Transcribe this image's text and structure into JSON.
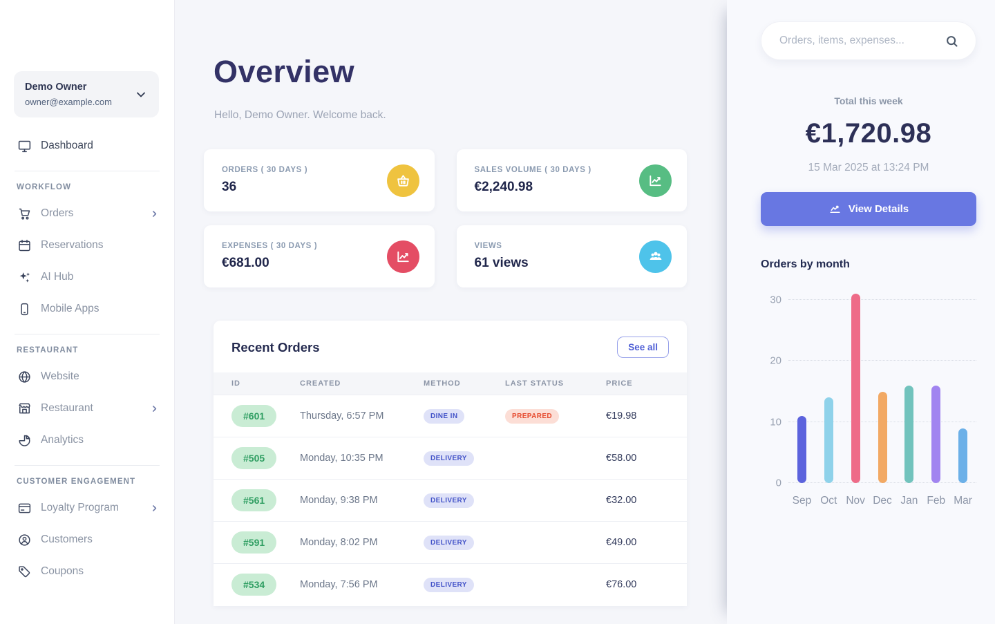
{
  "sidebar": {
    "user": {
      "name": "Demo Owner",
      "email": "owner@example.com"
    },
    "dashboard_label": "Dashboard",
    "sections": [
      {
        "label": "WORKFLOW",
        "items": [
          {
            "label": "Orders",
            "icon": "cart-icon",
            "has_submenu": true
          },
          {
            "label": "Reservations",
            "icon": "calendar-icon",
            "has_submenu": false
          },
          {
            "label": "AI Hub",
            "icon": "sparkles-icon",
            "has_submenu": false
          },
          {
            "label": "Mobile Apps",
            "icon": "phone-icon",
            "has_submenu": false
          }
        ]
      },
      {
        "label": "RESTAURANT",
        "items": [
          {
            "label": "Website",
            "icon": "globe-icon",
            "has_submenu": false
          },
          {
            "label": "Restaurant",
            "icon": "storefront-icon",
            "has_submenu": true
          },
          {
            "label": "Analytics",
            "icon": "pie-chart-icon",
            "has_submenu": false
          }
        ]
      },
      {
        "label": "CUSTOMER ENGAGEMENT",
        "items": [
          {
            "label": "Loyalty Program",
            "icon": "loyalty-card-icon",
            "has_submenu": true
          },
          {
            "label": "Customers",
            "icon": "person-circle-icon",
            "has_submenu": false
          },
          {
            "label": "Coupons",
            "icon": "tag-icon",
            "has_submenu": false
          }
        ]
      }
    ]
  },
  "main": {
    "title": "Overview",
    "greeting": "Hello, Demo Owner. Welcome back.",
    "stats": [
      {
        "label": "ORDERS ( 30 DAYS )",
        "value": "36",
        "icon": "basket-icon",
        "color": "#efc33f"
      },
      {
        "label": "SALES VOLUME ( 30 DAYS )",
        "value": "€2,240.98",
        "icon": "chart-up-icon",
        "color": "#57bd83"
      },
      {
        "label": "EXPENSES ( 30 DAYS )",
        "value": "€681.00",
        "icon": "chart-line-icon",
        "color": "#e44d64"
      },
      {
        "label": "VIEWS",
        "value": "61 views",
        "icon": "people-icon",
        "color": "#4ec3ea"
      }
    ],
    "recent_orders": {
      "title": "Recent Orders",
      "see_all_label": "See all",
      "columns": [
        "ID",
        "CREATED",
        "METHOD",
        "LAST STATUS",
        "PRICE"
      ],
      "rows": [
        {
          "id": "#601",
          "created": "Thursday, 6:57 PM",
          "method": "DINE IN",
          "status": "PREPARED",
          "price": "€19.98"
        },
        {
          "id": "#505",
          "created": "Monday, 10:35 PM",
          "method": "DELIVERY",
          "status": "",
          "price": "€58.00"
        },
        {
          "id": "#561",
          "created": "Monday, 9:38 PM",
          "method": "DELIVERY",
          "status": "",
          "price": "€32.00"
        },
        {
          "id": "#591",
          "created": "Monday, 8:02 PM",
          "method": "DELIVERY",
          "status": "",
          "price": "€49.00"
        },
        {
          "id": "#534",
          "created": "Monday, 7:56 PM",
          "method": "DELIVERY",
          "status": "",
          "price": "€76.00"
        }
      ]
    }
  },
  "rightpanel": {
    "search_placeholder": "Orders, items, expenses...",
    "total_label": "Total this week",
    "total_value": "€1,720.98",
    "total_date": "15 Mar 2025 at 13:24 PM",
    "view_details_label": "View Details"
  },
  "chart_data": {
    "type": "bar",
    "title": "Orders by month",
    "categories": [
      "Sep",
      "Oct",
      "Nov",
      "Dec",
      "Jan",
      "Feb",
      "Mar"
    ],
    "values": [
      11,
      14,
      31,
      15,
      16,
      16,
      9
    ],
    "bar_colors": [
      "#5c63dd",
      "#8fd2ea",
      "#ee6b88",
      "#f2a964",
      "#72c3bd",
      "#a184f0",
      "#6cb0e8"
    ],
    "xlabel": "",
    "ylabel": "",
    "yticks": [
      0,
      10,
      20,
      30
    ],
    "ylim": [
      0,
      31
    ],
    "grid": "dotted-horizontal",
    "legend": "none"
  },
  "colors": {
    "accent": "#6877e2",
    "title_navy": "#333266",
    "id_badge_bg": "#c9ecd4",
    "id_badge_text": "#2f9e62",
    "method_badge_bg": "#dfe2f8",
    "method_badge_text": "#4353c8",
    "status_badge_bg": "#fcded6",
    "status_badge_text": "#e64a2e"
  }
}
